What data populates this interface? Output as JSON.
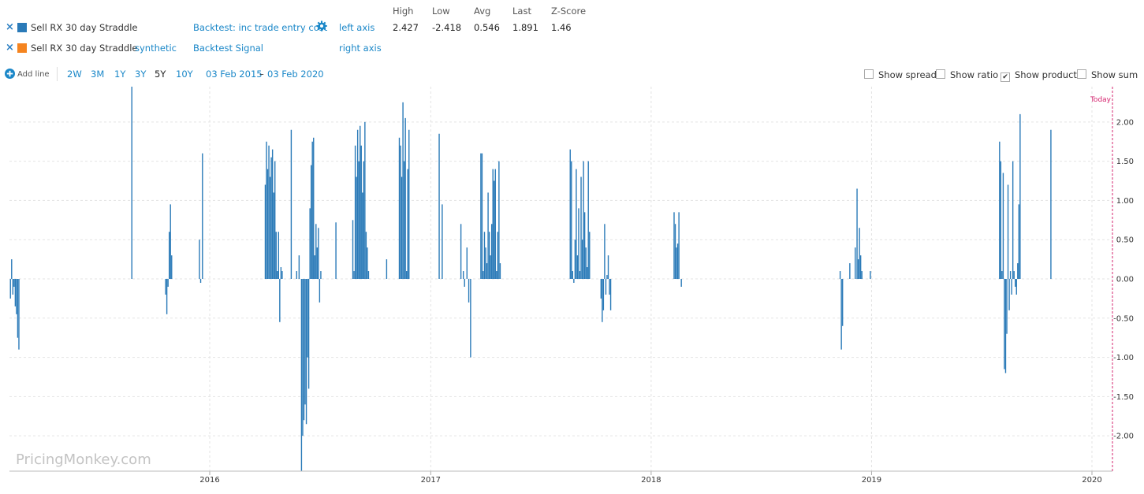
{
  "series": [
    {
      "remove_icon": "×",
      "color": "#2a7ab8",
      "name": "Sell RX 30 day Straddle",
      "source": "",
      "option": "Backtest: inc trade entry cost",
      "axis": "left axis"
    },
    {
      "remove_icon": "×",
      "color": "#f5841f",
      "name": "Sell RX 30 day Straddle",
      "source": "synthetic",
      "option": "Backtest Signal",
      "axis": "right axis"
    }
  ],
  "stats": {
    "headers": [
      "High",
      "Low",
      "Avg",
      "Last",
      "Z-Score"
    ],
    "values": [
      "2.427",
      "-2.418",
      "0.546",
      "1.891",
      "1.46"
    ]
  },
  "toolbar": {
    "add_line": "Add line",
    "ranges": [
      "2W",
      "3M",
      "1Y",
      "3Y",
      "5Y",
      "10Y"
    ],
    "active_range": "5Y",
    "date_from": "03 Feb 2015",
    "date_sep": "–",
    "date_to": "03 Feb 2020",
    "toggles": [
      {
        "label": "Show spread",
        "checked": false
      },
      {
        "label": "Show ratio",
        "checked": false
      },
      {
        "label": "Show product",
        "checked": true
      },
      {
        "label": "Show sum",
        "checked": false
      }
    ]
  },
  "chart_data": {
    "type": "bar",
    "x_range": [
      "2015-02-03",
      "2020-02-03"
    ],
    "ylim": [
      -2.45,
      2.45
    ],
    "y_ticks": [
      -2.0,
      -1.5,
      -1.0,
      -0.5,
      0.0,
      0.5,
      1.0,
      1.5,
      2.0
    ],
    "y_tick_labels": [
      "-2.00",
      "-1.50",
      "-1.00",
      "-0.50",
      "0.00",
      "0.50",
      "1.00",
      "1.50",
      "2.00"
    ],
    "x_ticks": [
      "2016-01-01",
      "2017-01-01",
      "2018-01-01",
      "2019-01-01",
      "2020-01-01"
    ],
    "x_tick_labels": [
      "2016",
      "2017",
      "2018",
      "2019",
      "2020"
    ],
    "grid": true,
    "today_label": "Today",
    "watermark": "PricingMonkey.com",
    "series": [
      {
        "color": "#2a7ab8",
        "points": [
          [
            "2015-02-05",
            -0.25
          ],
          [
            "2015-02-07",
            0.25
          ],
          [
            "2015-02-09",
            -0.2
          ],
          [
            "2015-02-11",
            -0.1
          ],
          [
            "2015-02-13",
            -0.35
          ],
          [
            "2015-02-15",
            -0.45
          ],
          [
            "2015-02-17",
            -0.75
          ],
          [
            "2015-02-19",
            -0.9
          ],
          [
            "2015-08-25",
            2.45
          ],
          [
            "2015-10-20",
            -0.2
          ],
          [
            "2015-10-22",
            -0.45
          ],
          [
            "2015-10-24",
            -0.1
          ],
          [
            "2015-10-26",
            0.6
          ],
          [
            "2015-10-28",
            0.95
          ],
          [
            "2015-10-30",
            0.3
          ],
          [
            "2015-12-15",
            0.5
          ],
          [
            "2015-12-17",
            -0.05
          ],
          [
            "2015-12-20",
            1.6
          ],
          [
            "2016-04-02",
            1.2
          ],
          [
            "2016-04-04",
            1.75
          ],
          [
            "2016-04-06",
            1.4
          ],
          [
            "2016-04-08",
            1.7
          ],
          [
            "2016-04-10",
            1.3
          ],
          [
            "2016-04-12",
            1.55
          ],
          [
            "2016-04-14",
            1.65
          ],
          [
            "2016-04-16",
            1.1
          ],
          [
            "2016-04-18",
            1.5
          ],
          [
            "2016-04-20",
            0.6
          ],
          [
            "2016-04-22",
            0.1
          ],
          [
            "2016-04-24",
            0.6
          ],
          [
            "2016-04-26",
            -0.55
          ],
          [
            "2016-04-28",
            0.15
          ],
          [
            "2016-04-30",
            0.1
          ],
          [
            "2016-05-15",
            1.9
          ],
          [
            "2016-05-24",
            0.1
          ],
          [
            "2016-05-28",
            0.3
          ],
          [
            "2016-06-01",
            -2.45
          ],
          [
            "2016-06-03",
            -2.0
          ],
          [
            "2016-06-05",
            -1.8
          ],
          [
            "2016-06-07",
            -1.6
          ],
          [
            "2016-06-09",
            -1.85
          ],
          [
            "2016-06-11",
            -1.0
          ],
          [
            "2016-06-13",
            -1.4
          ],
          [
            "2016-06-15",
            0.9
          ],
          [
            "2016-06-17",
            1.45
          ],
          [
            "2016-06-19",
            1.75
          ],
          [
            "2016-06-21",
            1.8
          ],
          [
            "2016-06-23",
            0.3
          ],
          [
            "2016-06-25",
            0.7
          ],
          [
            "2016-06-27",
            0.4
          ],
          [
            "2016-06-29",
            0.65
          ],
          [
            "2016-07-01",
            -0.3
          ],
          [
            "2016-07-03",
            0.1
          ],
          [
            "2016-07-28",
            0.72
          ],
          [
            "2016-08-25",
            0.75
          ],
          [
            "2016-08-27",
            0.1
          ],
          [
            "2016-08-29",
            1.7
          ],
          [
            "2016-08-31",
            1.3
          ],
          [
            "2016-09-02",
            1.9
          ],
          [
            "2016-09-04",
            1.5
          ],
          [
            "2016-09-06",
            1.95
          ],
          [
            "2016-09-08",
            1.7
          ],
          [
            "2016-09-10",
            1.1
          ],
          [
            "2016-09-12",
            1.5
          ],
          [
            "2016-09-14",
            2.0
          ],
          [
            "2016-09-16",
            0.6
          ],
          [
            "2016-09-18",
            0.4
          ],
          [
            "2016-09-20",
            0.1
          ],
          [
            "2016-10-20",
            0.25
          ],
          [
            "2016-11-10",
            1.8
          ],
          [
            "2016-11-12",
            1.7
          ],
          [
            "2016-11-14",
            1.3
          ],
          [
            "2016-11-16",
            2.25
          ],
          [
            "2016-11-18",
            1.5
          ],
          [
            "2016-11-20",
            2.05
          ],
          [
            "2016-11-22",
            0.1
          ],
          [
            "2016-11-24",
            1.4
          ],
          [
            "2016-11-26",
            1.9
          ],
          [
            "2017-01-15",
            1.85
          ],
          [
            "2017-01-20",
            0.95
          ],
          [
            "2017-02-20",
            0.7
          ],
          [
            "2017-02-24",
            0.1
          ],
          [
            "2017-02-26",
            -0.1
          ],
          [
            "2017-03-02",
            0.4
          ],
          [
            "2017-03-05",
            -0.3
          ],
          [
            "2017-03-08",
            -1.0
          ],
          [
            "2017-03-25",
            1.6
          ],
          [
            "2017-03-27",
            1.6
          ],
          [
            "2017-03-29",
            0.1
          ],
          [
            "2017-03-31",
            0.6
          ],
          [
            "2017-04-02",
            0.4
          ],
          [
            "2017-04-04",
            0.2
          ],
          [
            "2017-04-06",
            1.1
          ],
          [
            "2017-04-08",
            0.6
          ],
          [
            "2017-04-10",
            0.3
          ],
          [
            "2017-04-12",
            0.7
          ],
          [
            "2017-04-14",
            1.4
          ],
          [
            "2017-04-16",
            1.25
          ],
          [
            "2017-04-18",
            1.4
          ],
          [
            "2017-04-20",
            0.1
          ],
          [
            "2017-04-22",
            0.6
          ],
          [
            "2017-04-24",
            1.5
          ],
          [
            "2017-04-26",
            0.2
          ],
          [
            "2017-08-20",
            1.65
          ],
          [
            "2017-08-22",
            1.5
          ],
          [
            "2017-08-24",
            0.1
          ],
          [
            "2017-08-26",
            -0.05
          ],
          [
            "2017-08-28",
            0.5
          ],
          [
            "2017-08-30",
            1.4
          ],
          [
            "2017-09-01",
            0.3
          ],
          [
            "2017-09-03",
            0.9
          ],
          [
            "2017-09-05",
            0.1
          ],
          [
            "2017-09-07",
            1.3
          ],
          [
            "2017-09-09",
            0.5
          ],
          [
            "2017-09-11",
            1.5
          ],
          [
            "2017-09-13",
            0.85
          ],
          [
            "2017-09-15",
            0.4
          ],
          [
            "2017-09-17",
            0.15
          ],
          [
            "2017-09-19",
            1.5
          ],
          [
            "2017-09-21",
            0.6
          ],
          [
            "2017-10-10",
            -0.25
          ],
          [
            "2017-10-12",
            -0.55
          ],
          [
            "2017-10-14",
            -0.4
          ],
          [
            "2017-10-16",
            0.7
          ],
          [
            "2017-10-18",
            -0.2
          ],
          [
            "2017-10-20",
            0.05
          ],
          [
            "2017-10-22",
            0.3
          ],
          [
            "2017-10-24",
            -0.2
          ],
          [
            "2017-10-26",
            -0.4
          ],
          [
            "2018-02-08",
            0.85
          ],
          [
            "2018-02-10",
            0.7
          ],
          [
            "2018-02-12",
            0.4
          ],
          [
            "2018-02-14",
            0.45
          ],
          [
            "2018-02-16",
            0.85
          ],
          [
            "2018-02-20",
            -0.1
          ],
          [
            "2018-11-10",
            0.1
          ],
          [
            "2018-11-12",
            -0.9
          ],
          [
            "2018-11-14",
            -0.6
          ],
          [
            "2018-11-26",
            0.2
          ],
          [
            "2018-12-05",
            0.4
          ],
          [
            "2018-12-08",
            1.15
          ],
          [
            "2018-12-10",
            0.25
          ],
          [
            "2018-12-12",
            0.65
          ],
          [
            "2018-12-14",
            0.3
          ],
          [
            "2018-12-16",
            0.1
          ],
          [
            "2018-12-30",
            0.1
          ],
          [
            "2019-08-01",
            1.75
          ],
          [
            "2019-08-03",
            1.5
          ],
          [
            "2019-08-05",
            0.1
          ],
          [
            "2019-08-07",
            1.35
          ],
          [
            "2019-08-09",
            -1.15
          ],
          [
            "2019-08-11",
            -1.2
          ],
          [
            "2019-08-13",
            -0.7
          ],
          [
            "2019-08-15",
            1.2
          ],
          [
            "2019-08-17",
            -0.4
          ],
          [
            "2019-08-19",
            0.1
          ],
          [
            "2019-08-21",
            -0.2
          ],
          [
            "2019-08-23",
            1.5
          ],
          [
            "2019-08-25",
            0.1
          ],
          [
            "2019-08-27",
            -0.1
          ],
          [
            "2019-08-29",
            -0.2
          ],
          [
            "2019-08-31",
            0.2
          ],
          [
            "2019-09-02",
            0.95
          ],
          [
            "2019-09-04",
            2.1
          ],
          [
            "2019-10-25",
            1.9
          ]
        ]
      }
    ]
  }
}
